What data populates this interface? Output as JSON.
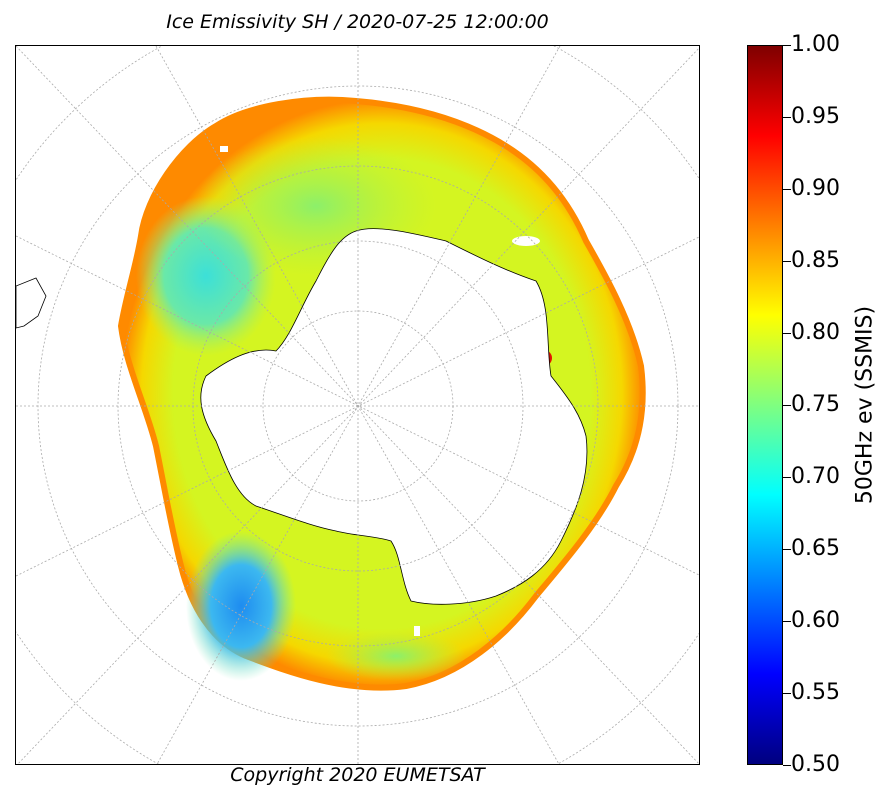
{
  "title": "Ice Emissivity SH / 2020-07-25 12:00:00",
  "copyright": "Copyright 2020 EUMETSAT",
  "colorbar": {
    "label": "50GHz ev (SSMIS)",
    "min": 0.5,
    "max": 1.0,
    "ticks": [
      "1.00",
      "0.95",
      "0.90",
      "0.85",
      "0.80",
      "0.75",
      "0.70",
      "0.65",
      "0.60",
      "0.55",
      "0.50"
    ],
    "colormap": "jet"
  },
  "map": {
    "projection": "south-polar-stereographic",
    "hemisphere": "SH",
    "gridlines": "dotted",
    "colors": {
      "ice_fill": "#d4f521",
      "ice_edge": "#fe8a00",
      "ice_green": "#8cf06a",
      "ice_cyan": "#3ce8c8",
      "ice_blue": "#1e8cf0",
      "hotspot_red": "#e31400",
      "land": "#ffffff",
      "coastline": "#000000"
    }
  }
}
